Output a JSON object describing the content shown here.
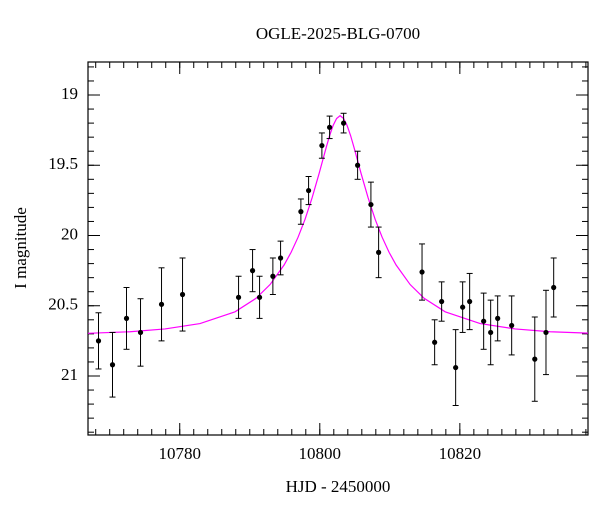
{
  "chart_data": {
    "type": "scatter",
    "title": "OGLE-2025-BLG-0700",
    "x_label": "HJD - 2450000",
    "y_label": "I magnitude",
    "xlim": [
      10766.9,
      10838.3
    ],
    "ylim": [
      18.765,
      21.42
    ],
    "y_inverted": true,
    "xticks": [
      10780,
      10800,
      10820
    ],
    "yticks": [
      19,
      19.5,
      20,
      20.5,
      21
    ],
    "xminorticks": [
      10768,
      10770,
      10772,
      10774,
      10776,
      10778,
      10780,
      10782,
      10784,
      10786,
      10788,
      10790,
      10792,
      10794,
      10796,
      10798,
      10800,
      10802,
      10804,
      10806,
      10808,
      10810,
      10812,
      10814,
      10816,
      10818,
      10820,
      10822,
      10824,
      10826,
      10828,
      10830,
      10832,
      10834,
      10836,
      10838
    ],
    "yminorticks": [
      18.8,
      18.9,
      19,
      19.1,
      19.2,
      19.3,
      19.4,
      19.5,
      19.6,
      19.7,
      19.8,
      19.9,
      20,
      20.1,
      20.2,
      20.3,
      20.4,
      20.5,
      20.6,
      20.7,
      20.8,
      20.9,
      21,
      21.1,
      21.2,
      21.3,
      21.4
    ],
    "points": {
      "color": "#000000",
      "x": [
        10768.4,
        10770.4,
        10772.4,
        10774.4,
        10777.4,
        10780.4,
        10788.4,
        10790.4,
        10791.4,
        10793.3,
        10794.4,
        10797.3,
        10798.4,
        10800.3,
        10801.4,
        10803.4,
        10805.4,
        10807.3,
        10808.4,
        10814.6,
        10816.4,
        10817.4,
        10819.4,
        10820.4,
        10821.4,
        10823.4,
        10824.4,
        10825.4,
        10827.4,
        10830.7,
        10832.3,
        10833.4
      ],
      "values": [
        20.75,
        20.92,
        20.59,
        20.69,
        20.49,
        20.42,
        20.44,
        20.25,
        20.44,
        20.29,
        20.16,
        19.83,
        19.68,
        19.36,
        19.23,
        19.2,
        19.5,
        19.78,
        20.12,
        20.26,
        20.76,
        20.47,
        20.94,
        20.51,
        20.47,
        20.61,
        20.69,
        20.59,
        20.64,
        20.88,
        20.69,
        20.37
      ],
      "errors": [
        0.2,
        0.23,
        0.22,
        0.24,
        0.26,
        0.26,
        0.15,
        0.15,
        0.15,
        0.13,
        0.12,
        0.09,
        0.1,
        0.09,
        0.08,
        0.07,
        0.1,
        0.16,
        0.18,
        0.2,
        0.16,
        0.14,
        0.27,
        0.18,
        0.2,
        0.2,
        0.23,
        0.16,
        0.21,
        0.3,
        0.3,
        0.21
      ]
    },
    "model": {
      "color": "#ff00ff",
      "x": [
        10766.9,
        10772.9,
        10777.9,
        10782.9,
        10787.9,
        10790.9,
        10792.9,
        10794.9,
        10795.9,
        10796.9,
        10797.9,
        10798.9,
        10799.9,
        10800.9,
        10801.4,
        10801.9,
        10802.4,
        10802.9,
        10803.4,
        10803.9,
        10804.4,
        10804.9,
        10805.9,
        10806.9,
        10807.9,
        10808.9,
        10809.9,
        10810.9,
        10812.9,
        10814.9,
        10817.9,
        10822.9,
        10827.9,
        10832.9,
        10838.3
      ],
      "values": [
        20.696,
        20.685,
        20.665,
        20.627,
        20.543,
        20.447,
        20.349,
        20.21,
        20.12,
        20.012,
        19.884,
        19.732,
        19.559,
        19.376,
        19.289,
        19.217,
        19.167,
        19.147,
        19.167,
        19.217,
        19.289,
        19.376,
        19.559,
        19.732,
        19.884,
        20.012,
        20.12,
        20.21,
        20.349,
        20.447,
        20.543,
        20.627,
        20.665,
        20.685,
        20.695
      ]
    }
  }
}
